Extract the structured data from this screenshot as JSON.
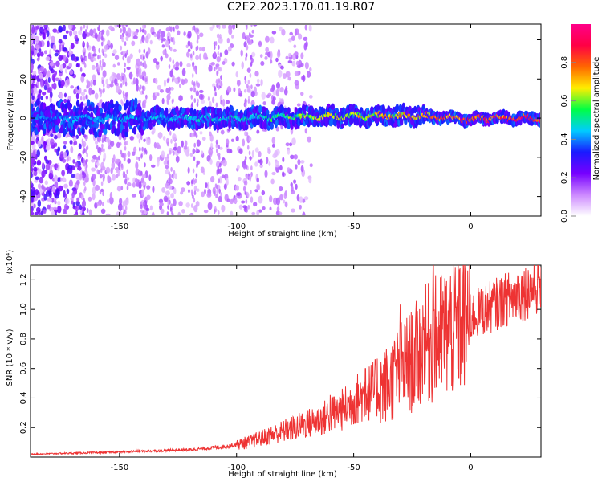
{
  "title": "C2E2.2023.170.01.19.R07",
  "colors": {
    "line": "#ee3333",
    "axis": "#000000"
  },
  "chart_data": [
    {
      "type": "heatmap",
      "xlabel": "Height of straight line (km)",
      "ylabel": "Frequency (Hz)",
      "xlim": [
        -188,
        30
      ],
      "ylim": [
        -50,
        48
      ],
      "x_ticks": [
        -150,
        -100,
        -50,
        0
      ],
      "y_ticks": [
        40,
        20,
        0,
        -20,
        -40
      ],
      "colorbar": {
        "label": "Normalized spectral amplitude",
        "range": [
          0,
          1
        ],
        "ticks": [
          0.0,
          0.2,
          0.4,
          0.6,
          0.8
        ],
        "colormap": [
          "#ffffff",
          "#cc88ff",
          "#7700ff",
          "#1a1aff",
          "#00ccff",
          "#00ff44",
          "#ffee00",
          "#ff6600",
          "#ff0044",
          "#ff0088"
        ]
      },
      "ridge": {
        "description_x": [
          -188,
          -150,
          -100,
          -60,
          -40,
          -20,
          -5,
          0,
          5,
          30
        ],
        "center_hz": [
          0,
          0,
          0,
          1,
          1,
          1,
          0,
          -1,
          0,
          0
        ],
        "peak_amplitude": [
          0.4,
          0.45,
          0.5,
          0.7,
          0.75,
          0.8,
          0.9,
          0.95,
          0.9,
          0.95
        ]
      }
    },
    {
      "type": "line",
      "xlabel": "Height of straight line (km)",
      "ylabel": "SNR (10 * v/v)",
      "yscale_label": "(x10⁴)",
      "xlim": [
        -188,
        30
      ],
      "ylim": [
        0,
        1.3
      ],
      "x_ticks": [
        -150,
        -100,
        -50,
        0
      ],
      "y_ticks": [
        0.2,
        0.4,
        0.6,
        0.8,
        1.0,
        1.2
      ],
      "series": [
        {
          "envelope_x": [
            -188,
            -160,
            -140,
            -120,
            -105,
            -95,
            -85,
            -75,
            -65,
            -55,
            -48,
            -42,
            -35,
            -30,
            -25,
            -20,
            -15,
            -10,
            -5,
            0,
            10,
            20,
            30
          ],
          "envelope_y": [
            0.02,
            0.03,
            0.04,
            0.05,
            0.07,
            0.1,
            0.15,
            0.2,
            0.25,
            0.32,
            0.4,
            0.45,
            0.5,
            0.6,
            0.65,
            0.75,
            0.8,
            0.85,
            0.9,
            0.95,
            1.03,
            1.1,
            1.17
          ],
          "spikes": [
            {
              "x": -60,
              "y": 0.42
            },
            {
              "x": -45,
              "y": 0.6
            },
            {
              "x": -30,
              "y": 1.03
            },
            {
              "x": -20,
              "y": 0.95
            },
            {
              "x": -16,
              "y": 1.3
            },
            {
              "x": -10,
              "y": 0.9
            },
            {
              "x": 0,
              "y": 0.82
            },
            {
              "x": 20,
              "y": 1.23
            }
          ]
        }
      ]
    }
  ]
}
